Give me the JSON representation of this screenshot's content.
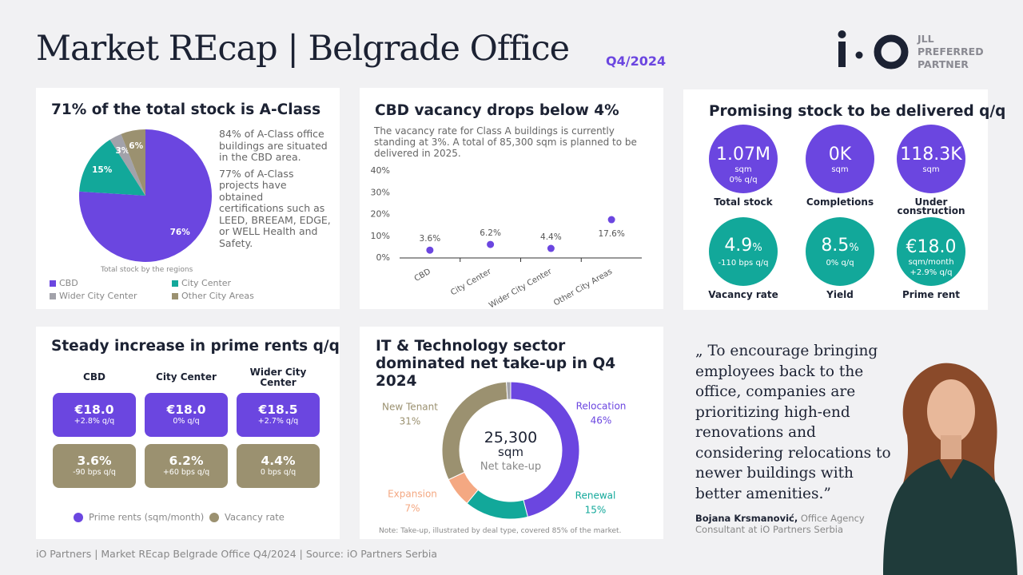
{
  "header": {
    "title": "Market REcap | Belgrade Office",
    "period": "Q4/2024",
    "partner": [
      "JLL",
      "PREFERRED",
      "PARTNER"
    ]
  },
  "chart_data": [
    {
      "type": "pie",
      "title": "71% of the total stock is A-Class",
      "notes": [
        "84% of A-Class office buildings are situated in the CBD area.",
        "77% of A-Class projects have obtained certifications such as LEED, BREEAM, EDGE, or WELL Health and Safety."
      ],
      "caption": "Total stock by the regions",
      "categories": [
        "CBD",
        "City Center",
        "Wider City Center",
        "Other City Areas"
      ],
      "values": [
        76,
        15,
        3,
        6
      ],
      "value_labels": [
        "76%",
        "15%",
        "3%",
        "6%"
      ],
      "colors": [
        "#6b46e0",
        "#12a89a",
        "#a2a2aa",
        "#9b9170"
      ],
      "legend": "bottom"
    },
    {
      "type": "dot",
      "title": "CBD vacancy drops below 4%",
      "subtitle": "The vacancy rate for Class A buildings is currently standing at 3%. A total of 85,300 sqm is planned to be delivered in 2025.",
      "categories": [
        "CBD",
        "City Center",
        "Wider City Center",
        "Other City Areas"
      ],
      "values": [
        3.6,
        6.2,
        4.4,
        17.6
      ],
      "value_labels": [
        "3.6%",
        "6.2%",
        "4.4%",
        "17.6%"
      ],
      "color": "#6b46e0",
      "ylim": [
        0,
        40
      ],
      "yticks": [
        {
          "value": 0,
          "label": "0%"
        },
        {
          "value": 10,
          "label": "10%"
        },
        {
          "value": 20,
          "label": "20%"
        },
        {
          "value": 30,
          "label": "30%"
        },
        {
          "value": 40,
          "label": "40%"
        }
      ]
    },
    {
      "type": "donut",
      "title": "IT & Technology sector dominated net take-up in Q4 2024",
      "center": {
        "value": "25,300",
        "unit": "sqm",
        "label": "Net take-up"
      },
      "categories": [
        "Relocation",
        "Renewal",
        "Expansion",
        "New Tenant",
        null
      ],
      "values": [
        46,
        15,
        7,
        31,
        1
      ],
      "value_labels": [
        "46%",
        "15%",
        "7%",
        "31%",
        null
      ],
      "colors": [
        "#6b46e0",
        "#12a89a",
        "#f4a882",
        "#9b9170",
        "#a2a2aa"
      ],
      "note": "Note: Take-up, illustrated by deal type, covered 85% of the market."
    }
  ],
  "stock": {
    "title": "Promising stock to be delivered q/q",
    "items": [
      {
        "value": "1.07M",
        "unit": "sqm",
        "change": "0% q/q",
        "label": "Total stock",
        "color": "#6b46e0",
        "unit_inline": false
      },
      {
        "value": "0K",
        "unit": "sqm",
        "label": "Completions",
        "color": "#6b46e0",
        "unit_inline": false
      },
      {
        "value": "118.3K",
        "unit": "sqm",
        "label": "Under construction",
        "color": "#6b46e0",
        "unit_inline": false
      },
      {
        "value": "4.9",
        "unit": "%",
        "change": "-110 bps q/q",
        "label": "Vacancy rate",
        "color": "#12a89a",
        "unit_inline": true
      },
      {
        "value": "8.5",
        "unit": "%",
        "change": "0% q/q",
        "label": "Yield",
        "color": "#12a89a",
        "unit_inline": true
      },
      {
        "value": "€18.0",
        "unit": "sqm/month",
        "change": "+2.9% q/q",
        "label": "Prime rent",
        "color": "#12a89a",
        "unit_inline": false
      }
    ]
  },
  "rents": {
    "title": "Steady increase in prime rents q/q",
    "columns": [
      "CBD",
      "City Center",
      "Wider City Center"
    ],
    "rent": [
      {
        "value": "€18.0",
        "change": "+2.8% q/q"
      },
      {
        "value": "€18.0",
        "change": "0% q/q"
      },
      {
        "value": "€18.5",
        "change": "+2.7% q/q"
      }
    ],
    "vacancy": [
      {
        "value": "3.6%",
        "change": "-90 bps q/q"
      },
      {
        "value": "6.2%",
        "change": "+60 bps q/q"
      },
      {
        "value": "4.4%",
        "change": "0 bps q/q"
      }
    ],
    "legend": [
      "Prime rents (sqm/month)",
      "Vacancy rate"
    ],
    "colors": [
      "#6b46e0",
      "#9b9170"
    ]
  },
  "quote": {
    "text": "„ To encourage bringing employees back to the office, companies are prioritizing high-end renovations and considering relocations to newer buildings with better amenities.”",
    "author": "Bojana Krsmanović,",
    "role": "Office Agency Consultant at iO Partners Serbia"
  },
  "footer": "iO Partners | Market REcap Belgrade Office Q4/2024 | Source: iO Partners Serbia"
}
